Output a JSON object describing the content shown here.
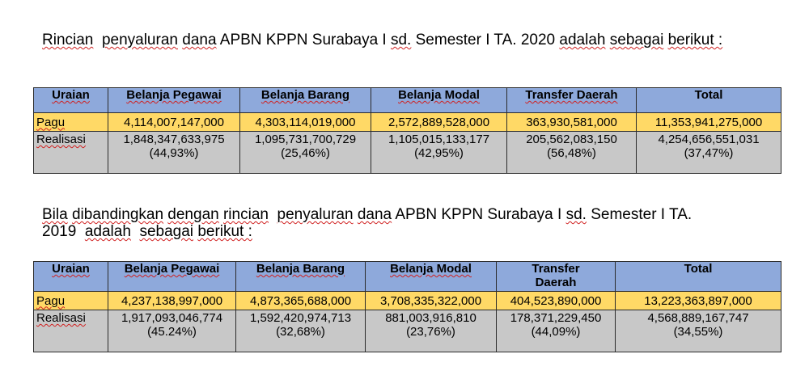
{
  "paragraph1": {
    "w_rincian": "Rincian",
    "w_penyaluran": "penyaluran",
    "w_dana": "dana",
    "w_mid": "APBN KPPN Surabaya I",
    "w_sd": "sd.",
    "w_semester": "Semester I TA. 2020",
    "w_adalah": "adalah",
    "w_sebagai": "sebagai",
    "w_berikut": "berikut :"
  },
  "paragraph2": {
    "w_bila": "Bila",
    "w_dibandingkan": "dibandingkan",
    "w_dengan": "dengan",
    "w_rincian": "rincian",
    "w_penyaluran": "penyaluran",
    "w_dana": "dana",
    "w_mid": "APBN KPPN Surabaya I",
    "w_sd": "sd.",
    "w_semester": "Semester I TA.",
    "w_year": "2019",
    "w_adalah": "adalah",
    "w_sebagai": "sebagai",
    "w_berikut": "berikut :"
  },
  "table2020": {
    "headers": [
      "Uraian",
      "Belanja Pegawai",
      "Belanja Barang",
      "Belanja Modal",
      "Transfer Daerah",
      "Total"
    ],
    "pagu": {
      "label": "Pagu",
      "values": [
        "4,114,007,147,000",
        "4,303,114,019,000",
        "2,572,889,528,000",
        "363,930,581,000",
        "11,353,941,275,000"
      ]
    },
    "realisasi": {
      "label": "Realisasi",
      "values": [
        "1,848,347,633,975",
        "1,095,731,700,729",
        "1,105,015,133,177",
        "205,562,083,150",
        "4,254,656,551,031"
      ],
      "percents": [
        "(44,93%)",
        "(25,46%)",
        "(42,95%)",
        "(56,48%)",
        "(37,47%)"
      ]
    }
  },
  "table2019": {
    "headers": [
      "Uraian",
      "Belanja Pegawai",
      "Belanja Barang",
      "Belanja Modal",
      "Transfer",
      "Daerah",
      "Total"
    ],
    "pagu": {
      "label": "Pagu",
      "values": [
        "4,237,138,997,000",
        "4,873,365,688,000",
        "3,708,335,322,000",
        "404,523,890,000",
        "13,223,363,897,000"
      ]
    },
    "realisasi": {
      "label": "Realisasi",
      "values": [
        "1,917,093,046,774",
        "1,592,420,974,713",
        "881,003,916,810",
        "178,371,229,450",
        "4,568,889,167,747"
      ],
      "percents": [
        "(45.24%)",
        "(32,68%)",
        "(23,76%)",
        "(44,09%)",
        "(34,55%)"
      ]
    }
  }
}
